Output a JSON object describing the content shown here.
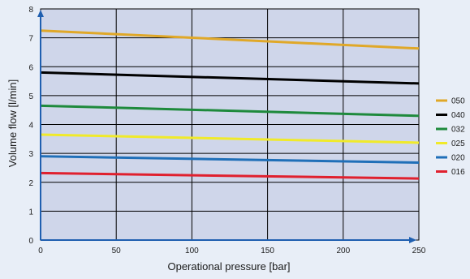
{
  "chart_data": {
    "type": "line",
    "title": "",
    "xlabel": "Operational pressure [bar]",
    "ylabel": "Volume flow [l/min]",
    "xlim": [
      0,
      250
    ],
    "ylim": [
      0,
      8
    ],
    "x_ticks": [
      0,
      50,
      100,
      150,
      200,
      250
    ],
    "y_ticks": [
      0,
      1,
      2,
      3,
      4,
      5,
      6,
      7,
      8
    ],
    "grid": true,
    "legend_position": "right",
    "plot_background": "#cfd6ea",
    "series": [
      {
        "name": "050",
        "color": "#e0a828",
        "x": [
          0,
          250
        ],
        "y": [
          7.25,
          6.63
        ]
      },
      {
        "name": "040",
        "color": "#000000",
        "x": [
          0,
          250
        ],
        "y": [
          5.8,
          5.42
        ]
      },
      {
        "name": "032",
        "color": "#1e8a3c",
        "x": [
          0,
          250
        ],
        "y": [
          4.65,
          4.3
        ]
      },
      {
        "name": "025",
        "color": "#f0ea2a",
        "x": [
          0,
          250
        ],
        "y": [
          3.65,
          3.37
        ]
      },
      {
        "name": "020",
        "color": "#1f6fb8",
        "x": [
          0,
          250
        ],
        "y": [
          2.9,
          2.68
        ]
      },
      {
        "name": "016",
        "color": "#e0202e",
        "x": [
          0,
          250
        ],
        "y": [
          2.32,
          2.13
        ]
      }
    ]
  }
}
